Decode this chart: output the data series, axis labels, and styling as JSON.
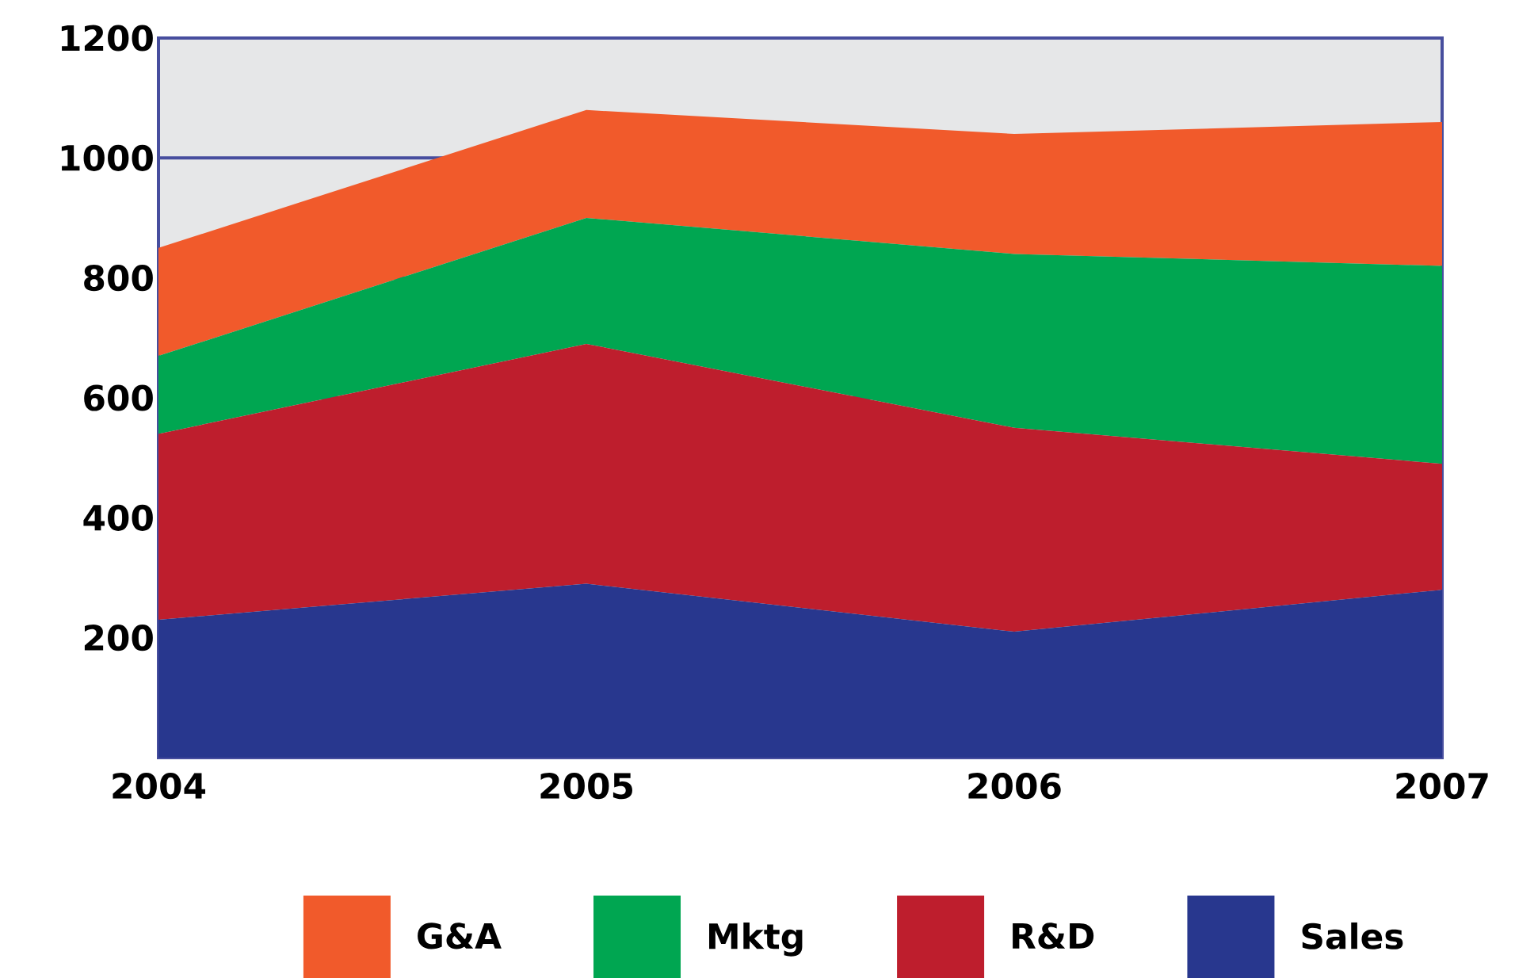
{
  "chart_data": {
    "type": "area",
    "stacked": true,
    "categories": [
      "2004",
      "2005",
      "2006",
      "2007"
    ],
    "series": [
      {
        "name": "Sales",
        "color": "#28378e",
        "values": [
          230,
          290,
          210,
          280
        ]
      },
      {
        "name": "R&D",
        "color": "#be1e2d",
        "values": [
          310,
          400,
          340,
          210
        ]
      },
      {
        "name": "Mktg",
        "color": "#00a651",
        "values": [
          130,
          210,
          290,
          330
        ]
      },
      {
        "name": "G&A",
        "color": "#f15a2b",
        "values": [
          180,
          180,
          200,
          240
        ]
      }
    ],
    "ylim": [
      0,
      1200
    ],
    "yticks": [
      200,
      400,
      600,
      800,
      1000,
      1200
    ],
    "grid": "y",
    "legend": "bottom"
  }
}
